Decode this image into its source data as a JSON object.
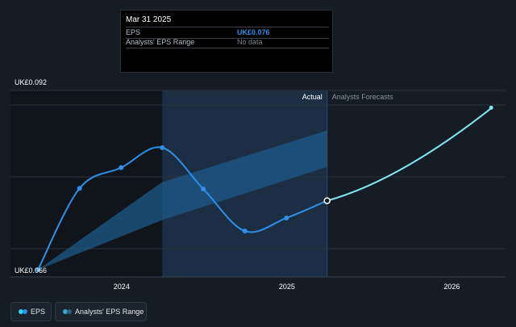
{
  "tooltip": {
    "date": "Mar 31 2025",
    "rows": [
      {
        "label": "EPS",
        "value": "UK£0.076"
      },
      {
        "label": "Analysts' EPS Range",
        "value": "No data"
      }
    ]
  },
  "legend": [
    {
      "label": "EPS"
    },
    {
      "label": "Analysts' EPS Range"
    }
  ],
  "colors": {
    "background": "#151c24",
    "eps_line": "#2f8fe8",
    "forecast_line": "#7fe8ef",
    "range_band": "#1e5a8a",
    "grid": "#2b323b"
  },
  "chart_data": {
    "type": "line",
    "y_axis": {
      "top_label": "UK£0.092",
      "bottom_label": "UK£0.066",
      "ylim": [
        0.066,
        0.092
      ]
    },
    "x_axis": {
      "ticks": [
        "2024",
        "2025",
        "2026"
      ],
      "xlim": [
        "2023-04-30",
        "2026-04-30"
      ]
    },
    "section_labels": {
      "actual": "Actual",
      "forecast": "Analysts Forecasts"
    },
    "series": [
      {
        "name": "EPS",
        "role": "actual",
        "points": [
          {
            "x": "2023-06-30",
            "y": 0.066
          },
          {
            "x": "2023-09-30",
            "y": 0.0778
          },
          {
            "x": "2023-12-31",
            "y": 0.0808
          },
          {
            "x": "2024-03-31",
            "y": 0.0837
          },
          {
            "x": "2024-06-30",
            "y": 0.0777
          },
          {
            "x": "2024-09-30",
            "y": 0.0716
          },
          {
            "x": "2024-12-31",
            "y": 0.0735
          },
          {
            "x": "2025-03-31",
            "y": 0.076
          }
        ]
      },
      {
        "name": "EPS Forecast",
        "role": "forecast",
        "points": [
          {
            "x": "2025-03-31",
            "y": 0.076
          },
          {
            "x": "2026-03-31",
            "y": 0.0895
          }
        ]
      }
    ],
    "range_band": {
      "name": "Analysts' EPS Range",
      "points": [
        {
          "x": "2023-06-30",
          "low": 0.066,
          "high": 0.066
        },
        {
          "x": "2024-03-31",
          "low": 0.0732,
          "high": 0.0787
        },
        {
          "x": "2025-03-31",
          "low": 0.0809,
          "high": 0.0862
        }
      ]
    },
    "past_shading_until": "2024-03-31",
    "forecast_start": "2025-03-31"
  }
}
